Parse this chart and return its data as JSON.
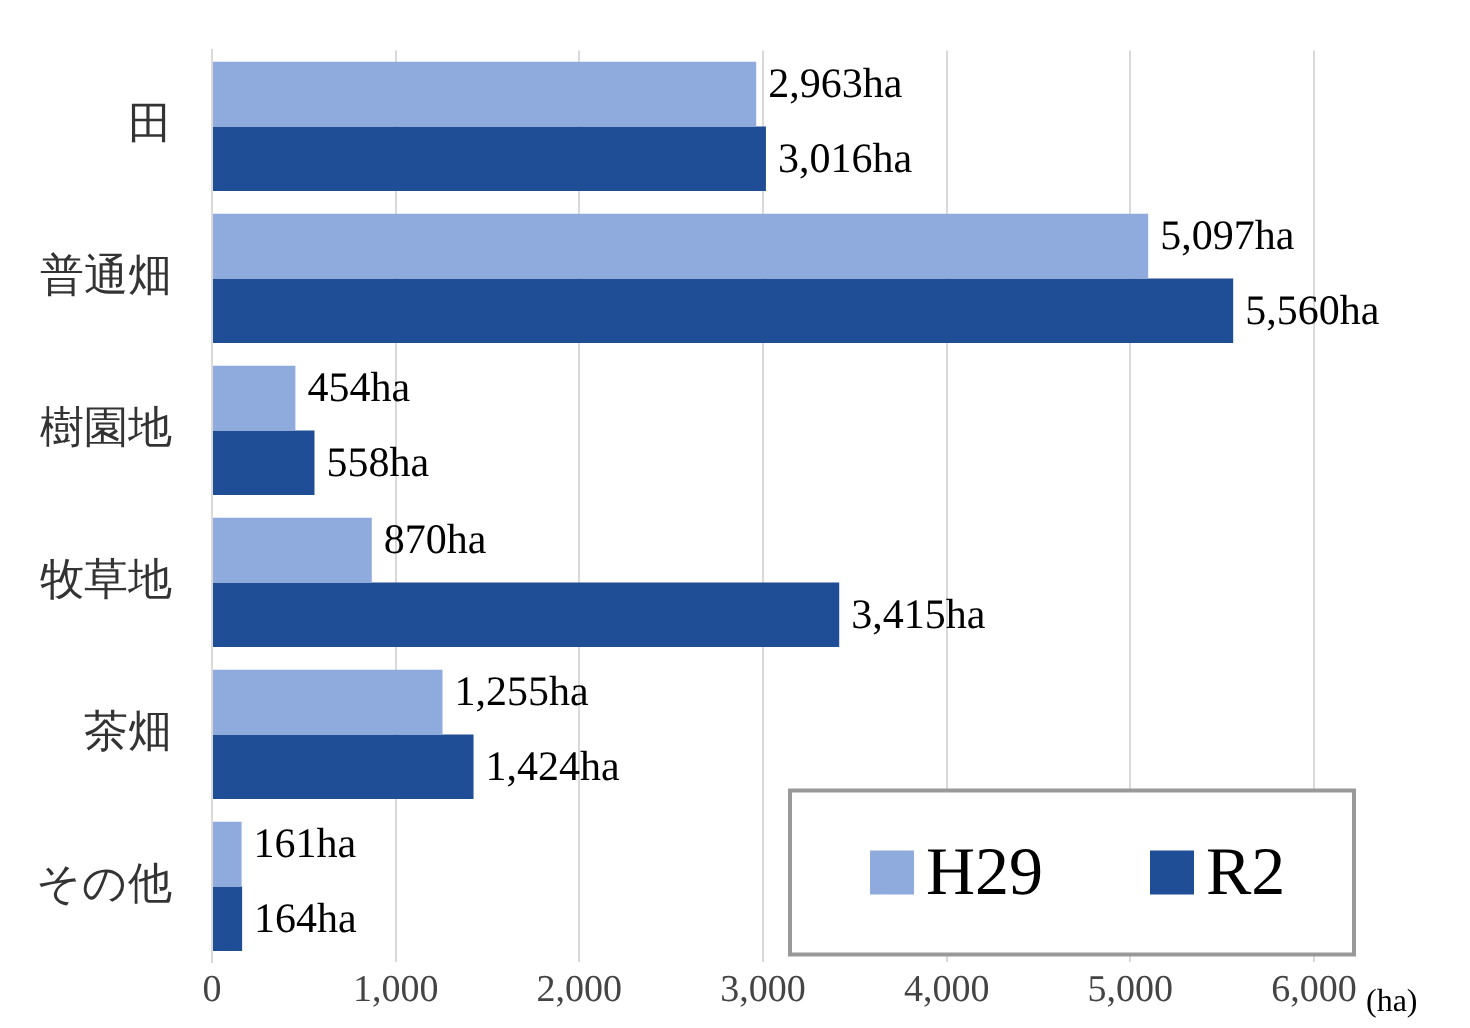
{
  "chart_data": {
    "type": "bar",
    "orientation": "horizontal",
    "xlabel": "(ha)",
    "categories": [
      "田",
      "普通畑",
      "樹園地",
      "牧草地",
      "茶畑",
      "その他"
    ],
    "series": [
      {
        "name": "H29",
        "color": "#8faadc",
        "values": [
          2963,
          5097,
          454,
          870,
          1255,
          161
        ],
        "value_labels": [
          "2,963ha",
          "5,097ha",
          "454ha",
          "870ha",
          "1,255ha",
          "161ha"
        ]
      },
      {
        "name": "R2",
        "color": "#1f4e96",
        "values": [
          3016,
          5560,
          558,
          3415,
          1424,
          164
        ],
        "value_labels": [
          "3,016ha",
          "5,560ha",
          "558ha",
          "3,415ha",
          "1,424ha",
          "164ha"
        ]
      }
    ],
    "xlim": [
      0,
      6000
    ],
    "xticks": [
      0,
      {
        "value": 1000,
        "label": "1,000"
      },
      {
        "value": 2000,
        "label": "2,000"
      },
      {
        "value": 3000,
        "label": "3,000"
      },
      {
        "value": 4000,
        "label": "4,000"
      },
      {
        "value": 5000,
        "label": "5,000"
      },
      {
        "value": 6000,
        "label": "6,000"
      }
    ],
    "grid": "x",
    "legend": "bottom right"
  }
}
